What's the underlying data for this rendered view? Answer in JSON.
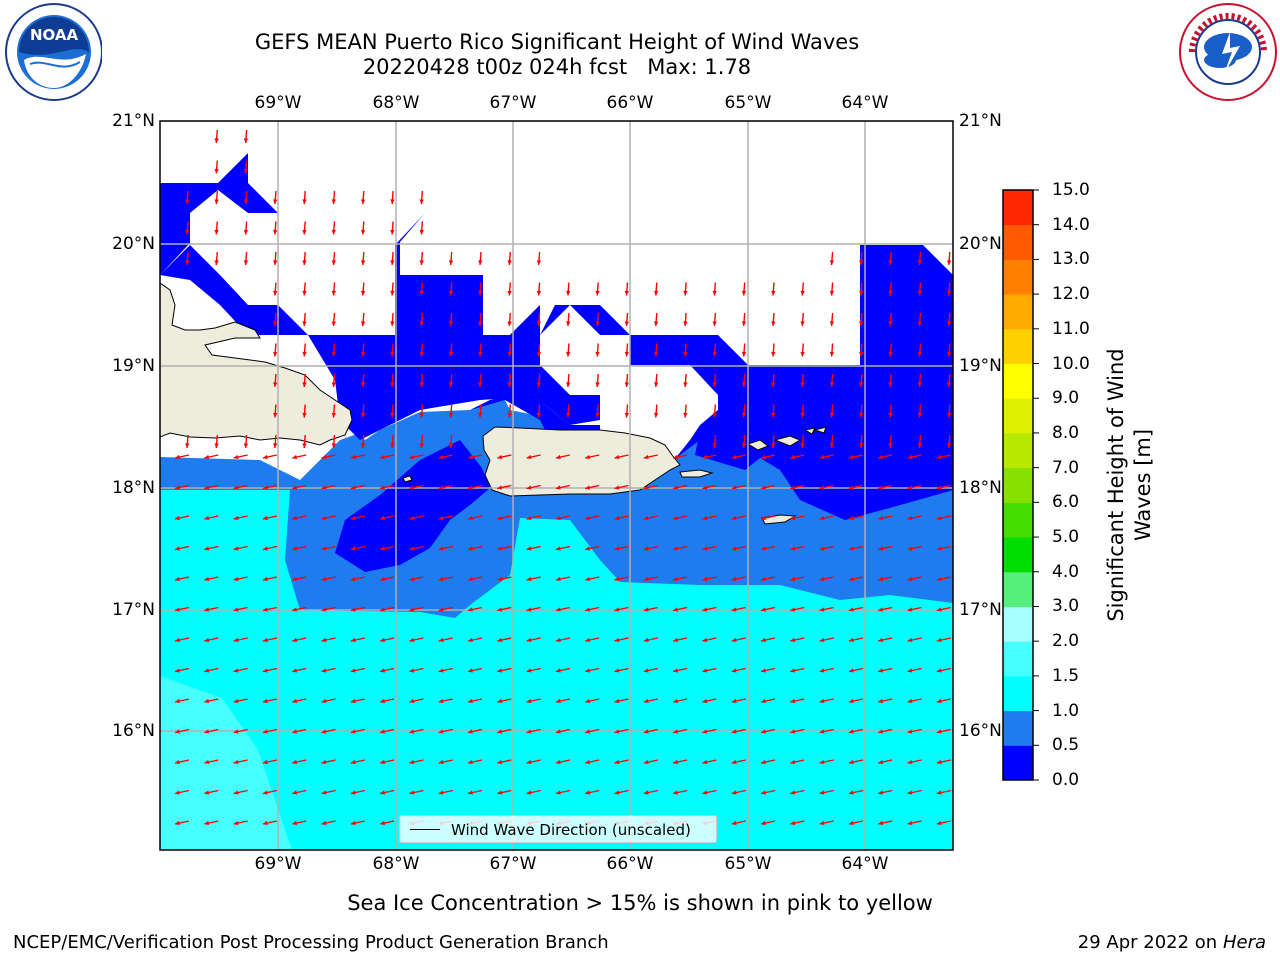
{
  "title": {
    "line1": "GEFS MEAN Puerto Rico Significant Height of Wind Waves",
    "line2": "20220428 t00z 024h fcst   Max: 1.78"
  },
  "logos": {
    "left": "noaa-logo",
    "right": "national-weather-service-logo",
    "left_text": "NOAA",
    "right_text": "NATIONAL WEATHER SERVICE"
  },
  "map": {
    "lon_labels": [
      "69°W",
      "68°W",
      "67°W",
      "66°W",
      "65°W",
      "64°W"
    ],
    "lat_labels": [
      "21°N",
      "20°N",
      "19°N",
      "18°N",
      "17°N",
      "16°N"
    ],
    "colors": {
      "land": "#eeecdc",
      "grid": "#b0b0b0",
      "arrow": "#ff0000"
    }
  },
  "colorbar": {
    "label": "Significant Height of Wind Waves [m]",
    "label_line1": "Significant Height of Wind",
    "label_line2": "Waves [m]",
    "ticks": [
      "0.0",
      "0.5",
      "1.0",
      "1.5",
      "2.0",
      "3.0",
      "4.0",
      "5.0",
      "6.0",
      "7.0",
      "8.0",
      "9.0",
      "10.0",
      "11.0",
      "12.0",
      "13.0",
      "14.0",
      "15.0"
    ],
    "colors": [
      "#0000ff",
      "#1e7cf0",
      "#00ffff",
      "#48ffff",
      "#a8ffff",
      "#55f07a",
      "#00dd00",
      "#44dd00",
      "#88e000",
      "#b8ea00",
      "#ddf000",
      "#ffff00",
      "#ffd000",
      "#ffaa00",
      "#ff8000",
      "#ff5a00",
      "#ff2800"
    ]
  },
  "legend": {
    "label": "Wind Wave Direction (unscaled)"
  },
  "sea_ice_note": "Sea Ice Concentration > 15% is shown in pink to yellow",
  "footer": {
    "left": "NCEP/EMC/Verification Post Processing Product Generation Branch",
    "date": "29 Apr 2022 on",
    "machine": "Hera"
  }
}
